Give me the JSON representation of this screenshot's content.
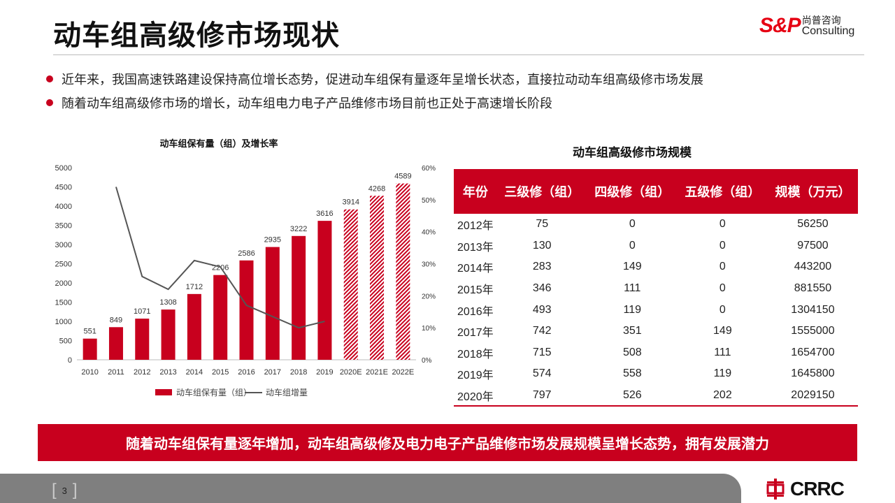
{
  "header": {
    "title": "动车组高级修市场现状",
    "logo": {
      "brand": "S&P",
      "cn": "尚普咨询",
      "en": "Consulting",
      "mark": "®"
    }
  },
  "bullets": [
    "近年来，我国高速铁路建设保持高位增长态势，促进动车组保有量逐年呈增长状态，直接拉动动车组高级修市场发展",
    "随着动车组高级修市场的增长，动车组电力电子产品维修市场目前也正处于高速增长阶段"
  ],
  "chart_data": {
    "type": "bar",
    "title": "动车组保有量（组）及增长率",
    "categories": [
      "2010",
      "2011",
      "2012",
      "2013",
      "2014",
      "2015",
      "2016",
      "2017",
      "2018",
      "2019",
      "2020E",
      "2021E",
      "2022E"
    ],
    "series": [
      {
        "name": "动车组保有量（组）",
        "type": "bar",
        "axis": "left",
        "values": [
          551,
          849,
          1071,
          1308,
          1712,
          2206,
          2586,
          2935,
          3222,
          3616,
          3914,
          4268,
          4589
        ],
        "forecast_from": "2020E",
        "color": "#c8001e"
      },
      {
        "name": "动车组增量",
        "type": "line",
        "axis": "right",
        "values": [
          null,
          54,
          26,
          22,
          31,
          29,
          17,
          13.5,
          10,
          12,
          null,
          null,
          null
        ],
        "color": "#555555"
      }
    ],
    "ylim": [
      0,
      5000
    ],
    "yticks": [
      0,
      500,
      1000,
      1500,
      2000,
      2500,
      3000,
      3500,
      4000,
      4500,
      5000
    ],
    "y2lim": [
      0,
      60
    ],
    "y2ticks": [
      "0%",
      "10%",
      "20%",
      "30%",
      "40%",
      "50%",
      "60%"
    ],
    "legend": "bottom"
  },
  "table": {
    "title": "动车组高级修市场规模",
    "headers": [
      "年份",
      "三级修（组）",
      "四级修（组）",
      "五级修（组）",
      "规模（万元）"
    ],
    "rows": [
      [
        "2012年",
        "75",
        "0",
        "0",
        "56250"
      ],
      [
        "2013年",
        "130",
        "0",
        "0",
        "97500"
      ],
      [
        "2014年",
        "283",
        "149",
        "0",
        "443200"
      ],
      [
        "2015年",
        "346",
        "111",
        "0",
        "881550"
      ],
      [
        "2016年",
        "493",
        "119",
        "0",
        "1304150"
      ],
      [
        "2017年",
        "742",
        "351",
        "149",
        "1555000"
      ],
      [
        "2018年",
        "715",
        "508",
        "111",
        "1654700"
      ],
      [
        "2019年",
        "574",
        "558",
        "119",
        "1645800"
      ],
      [
        "2020年",
        "797",
        "526",
        "202",
        "2029150"
      ]
    ]
  },
  "banner": "随着动车组保有量逐年增加，动车组高级修及电力电子产品维修市场发展规模呈增长态势，拥有发展潜力",
  "footer": {
    "page": "3",
    "brand": "CRRC"
  }
}
